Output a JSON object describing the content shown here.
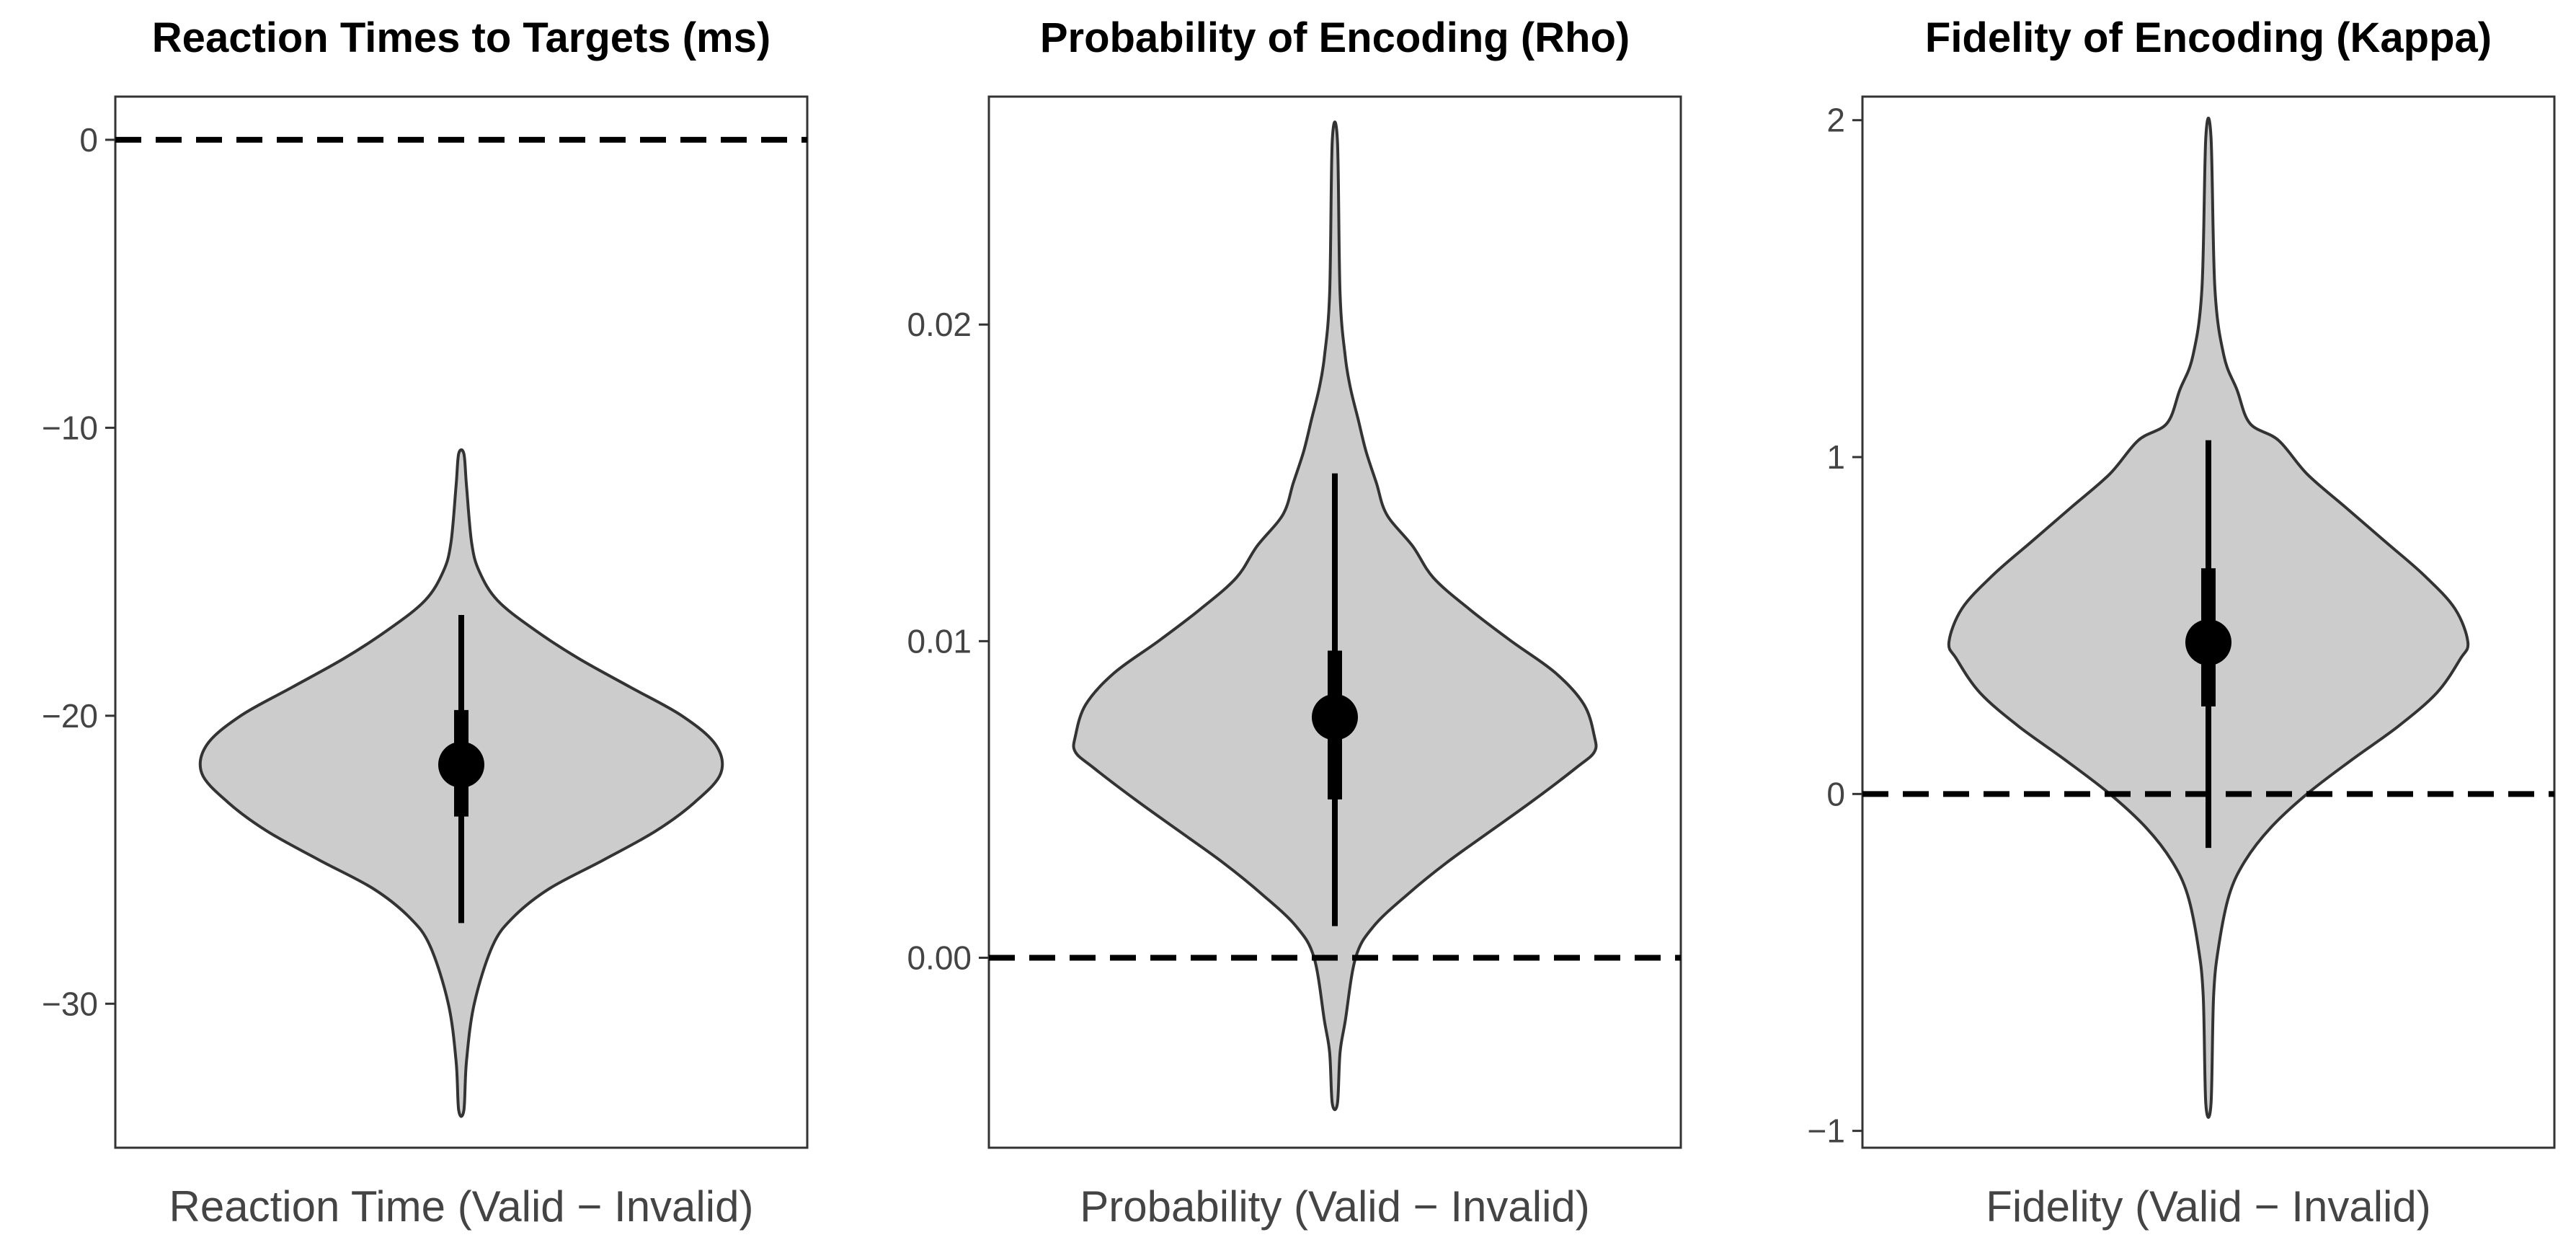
{
  "colors": {
    "violin_fill": "#cccccc",
    "violin_stroke": "#333333",
    "point": "#000000",
    "reference_line": "#000000",
    "panel_border": "#333333",
    "tick_text": "#444444"
  },
  "chart_data": [
    {
      "type": "violin",
      "title": "Reaction Times to Targets (ms)",
      "xlabel": "Reaction Time (Valid − Invalid)",
      "ylabel": "",
      "ylim": [
        -35,
        1.5
      ],
      "yticks": [
        0,
        -10,
        -20,
        -30
      ],
      "ytick_labels": [
        "0",
        "−10",
        "−20",
        "−30"
      ],
      "reference_line": 0,
      "distribution": {
        "min": -33.7,
        "max": -10.9,
        "median": -21.7,
        "ci66": [
          -23.5,
          -19.8
        ],
        "ci95": [
          -27.2,
          -16.5
        ],
        "profile": [
          [
            -33.7,
            0.01
          ],
          [
            -32,
            0.02
          ],
          [
            -30,
            0.05
          ],
          [
            -28,
            0.12
          ],
          [
            -27,
            0.2
          ],
          [
            -26,
            0.34
          ],
          [
            -25,
            0.55
          ],
          [
            -24,
            0.75
          ],
          [
            -23,
            0.9
          ],
          [
            -22,
            1.0
          ],
          [
            -21,
            0.98
          ],
          [
            -20,
            0.85
          ],
          [
            -19,
            0.65
          ],
          [
            -18,
            0.45
          ],
          [
            -17,
            0.28
          ],
          [
            -16,
            0.14
          ],
          [
            -15,
            0.07
          ],
          [
            -14,
            0.04
          ],
          [
            -12,
            0.02
          ],
          [
            -10.9,
            0.01
          ]
        ]
      }
    },
    {
      "type": "violin",
      "title": "Probability of Encoding (Rho)",
      "xlabel": "Probability (Valid − Invalid)",
      "ylabel": "",
      "ylim": [
        -0.006,
        0.0272
      ],
      "yticks": [
        0.02,
        0.01,
        0.0
      ],
      "ytick_labels": [
        "0.02",
        "0.01",
        "0.00"
      ],
      "reference_line": 0,
      "distribution": {
        "min": -0.0046,
        "max": 0.0258,
        "median": 0.0076,
        "ci66": [
          0.005,
          0.0097
        ],
        "ci95": [
          0.001,
          0.0153
        ],
        "profile": [
          [
            -0.0046,
            0.01
          ],
          [
            -0.003,
            0.02
          ],
          [
            -0.002,
            0.04
          ],
          [
            0.0,
            0.08
          ],
          [
            0.001,
            0.15
          ],
          [
            0.002,
            0.28
          ],
          [
            0.003,
            0.43
          ],
          [
            0.004,
            0.6
          ],
          [
            0.005,
            0.77
          ],
          [
            0.006,
            0.93
          ],
          [
            0.0065,
            1.0
          ],
          [
            0.007,
            1.0
          ],
          [
            0.008,
            0.96
          ],
          [
            0.009,
            0.85
          ],
          [
            0.01,
            0.68
          ],
          [
            0.011,
            0.52
          ],
          [
            0.012,
            0.38
          ],
          [
            0.013,
            0.3
          ],
          [
            0.014,
            0.2
          ],
          [
            0.015,
            0.16
          ],
          [
            0.016,
            0.12
          ],
          [
            0.017,
            0.09
          ],
          [
            0.018,
            0.06
          ],
          [
            0.019,
            0.04
          ],
          [
            0.021,
            0.02
          ],
          [
            0.0258,
            0.01
          ]
        ]
      }
    },
    {
      "type": "violin",
      "title": "Fidelity of Encoding (Kappa)",
      "xlabel": "Fidelity (Valid − Invalid)",
      "ylabel": "",
      "ylim": [
        -1.05,
        2.07
      ],
      "yticks": [
        2,
        1,
        0,
        -1
      ],
      "ytick_labels": [
        "2",
        "1",
        "0",
        "−1"
      ],
      "reference_line": 0,
      "distribution": {
        "min": -0.92,
        "max": 1.95,
        "median": 0.45,
        "ci66": [
          0.26,
          0.67
        ],
        "ci95": [
          -0.16,
          1.05
        ],
        "profile": [
          [
            -0.92,
            0.01
          ],
          [
            -0.6,
            0.02
          ],
          [
            -0.45,
            0.04
          ],
          [
            -0.3,
            0.08
          ],
          [
            -0.2,
            0.14
          ],
          [
            -0.1,
            0.24
          ],
          [
            0.0,
            0.38
          ],
          [
            0.1,
            0.55
          ],
          [
            0.2,
            0.73
          ],
          [
            0.3,
            0.88
          ],
          [
            0.4,
            0.97
          ],
          [
            0.45,
            1.0
          ],
          [
            0.55,
            0.95
          ],
          [
            0.65,
            0.83
          ],
          [
            0.75,
            0.68
          ],
          [
            0.85,
            0.53
          ],
          [
            0.95,
            0.38
          ],
          [
            1.05,
            0.27
          ],
          [
            1.1,
            0.16
          ],
          [
            1.2,
            0.11
          ],
          [
            1.3,
            0.06
          ],
          [
            1.5,
            0.025
          ],
          [
            1.95,
            0.01
          ]
        ]
      }
    }
  ]
}
